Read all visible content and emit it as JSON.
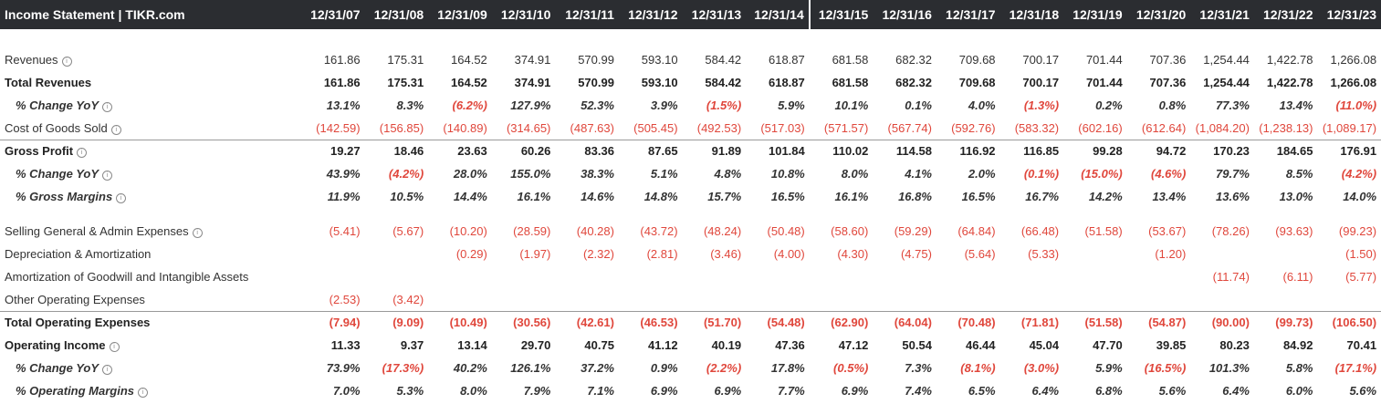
{
  "header": {
    "title": "Income Statement | TIKR.com",
    "years": [
      "12/31/07",
      "12/31/08",
      "12/31/09",
      "12/31/10",
      "12/31/11",
      "12/31/12",
      "12/31/13",
      "12/31/14",
      "12/31/15",
      "12/31/16",
      "12/31/17",
      "12/31/18",
      "12/31/19",
      "12/31/20",
      "12/31/21",
      "12/31/22",
      "12/31/23"
    ]
  },
  "rows": [
    {
      "label": "Revenues",
      "style": "normal",
      "info": true,
      "values": [
        "161.86",
        "175.31",
        "164.52",
        "374.91",
        "570.99",
        "593.10",
        "584.42",
        "618.87",
        "681.58",
        "682.32",
        "709.68",
        "700.17",
        "701.44",
        "707.36",
        "1,254.44",
        "1,422.78",
        "1,266.08"
      ]
    },
    {
      "label": "Total Revenues",
      "style": "bold",
      "info": false,
      "values": [
        "161.86",
        "175.31",
        "164.52",
        "374.91",
        "570.99",
        "593.10",
        "584.42",
        "618.87",
        "681.58",
        "682.32",
        "709.68",
        "700.17",
        "701.44",
        "707.36",
        "1,254.44",
        "1,422.78",
        "1,266.08"
      ]
    },
    {
      "label": "% Change YoY",
      "style": "pct",
      "info": true,
      "values": [
        "13.1%",
        "8.3%",
        "(6.2%)",
        "127.9%",
        "52.3%",
        "3.9%",
        "(1.5%)",
        "5.9%",
        "10.1%",
        "0.1%",
        "4.0%",
        "(1.3%)",
        "0.2%",
        "0.8%",
        "77.3%",
        "13.4%",
        "(11.0%)"
      ]
    },
    {
      "label": "Cost of Goods Sold",
      "style": "normal",
      "info": true,
      "values": [
        "(142.59)",
        "(156.85)",
        "(140.89)",
        "(314.65)",
        "(487.63)",
        "(505.45)",
        "(492.53)",
        "(517.03)",
        "(571.57)",
        "(567.74)",
        "(592.76)",
        "(583.32)",
        "(602.16)",
        "(612.64)",
        "(1,084.20)",
        "(1,238.13)",
        "(1,089.17)"
      ]
    },
    {
      "label": "Gross Profit",
      "style": "bold",
      "info": true,
      "topline": true,
      "values": [
        "19.27",
        "18.46",
        "23.63",
        "60.26",
        "83.36",
        "87.65",
        "91.89",
        "101.84",
        "110.02",
        "114.58",
        "116.92",
        "116.85",
        "99.28",
        "94.72",
        "170.23",
        "184.65",
        "176.91"
      ]
    },
    {
      "label": "% Change YoY",
      "style": "pct",
      "info": true,
      "values": [
        "43.9%",
        "(4.2%)",
        "28.0%",
        "155.0%",
        "38.3%",
        "5.1%",
        "4.8%",
        "10.8%",
        "8.0%",
        "4.1%",
        "2.0%",
        "(0.1%)",
        "(15.0%)",
        "(4.6%)",
        "79.7%",
        "8.5%",
        "(4.2%)"
      ]
    },
    {
      "label": "% Gross Margins",
      "style": "pct",
      "info": true,
      "values": [
        "11.9%",
        "10.5%",
        "14.4%",
        "16.1%",
        "14.6%",
        "14.8%",
        "15.7%",
        "16.5%",
        "16.1%",
        "16.8%",
        "16.5%",
        "16.7%",
        "14.2%",
        "13.4%",
        "13.6%",
        "13.0%",
        "14.0%"
      ]
    },
    {
      "gap": true
    },
    {
      "label": "Selling General & Admin Expenses",
      "style": "normal",
      "info": true,
      "values": [
        "(5.41)",
        "(5.67)",
        "(10.20)",
        "(28.59)",
        "(40.28)",
        "(43.72)",
        "(48.24)",
        "(50.48)",
        "(58.60)",
        "(59.29)",
        "(64.84)",
        "(66.48)",
        "(51.58)",
        "(53.67)",
        "(78.26)",
        "(93.63)",
        "(99.23)"
      ]
    },
    {
      "label": "Depreciation & Amortization",
      "style": "normal",
      "info": false,
      "values": [
        "",
        "",
        "(0.29)",
        "(1.97)",
        "(2.32)",
        "(2.81)",
        "(3.46)",
        "(4.00)",
        "(4.30)",
        "(4.75)",
        "(5.64)",
        "(5.33)",
        "",
        "(1.20)",
        "",
        "",
        "(1.50)"
      ]
    },
    {
      "label": "Amortization of Goodwill and Intangible Assets",
      "style": "normal",
      "info": false,
      "values": [
        "",
        "",
        "",
        "",
        "",
        "",
        "",
        "",
        "",
        "",
        "",
        "",
        "",
        "",
        "(11.74)",
        "(6.11)",
        "(5.77)"
      ]
    },
    {
      "label": "Other Operating Expenses",
      "style": "normal",
      "info": false,
      "values": [
        "(2.53)",
        "(3.42)",
        "",
        "",
        "",
        "",
        "",
        "",
        "",
        "",
        "",
        "",
        "",
        "",
        "",
        "",
        ""
      ]
    },
    {
      "label": "Total Operating Expenses",
      "style": "bold",
      "info": false,
      "topline": true,
      "values": [
        "(7.94)",
        "(9.09)",
        "(10.49)",
        "(30.56)",
        "(42.61)",
        "(46.53)",
        "(51.70)",
        "(54.48)",
        "(62.90)",
        "(64.04)",
        "(70.48)",
        "(71.81)",
        "(51.58)",
        "(54.87)",
        "(90.00)",
        "(99.73)",
        "(106.50)"
      ]
    },
    {
      "label": "Operating Income",
      "style": "bold",
      "info": true,
      "values": [
        "11.33",
        "9.37",
        "13.14",
        "29.70",
        "40.75",
        "41.12",
        "40.19",
        "47.36",
        "47.12",
        "50.54",
        "46.44",
        "45.04",
        "47.70",
        "39.85",
        "80.23",
        "84.92",
        "70.41"
      ]
    },
    {
      "label": "% Change YoY",
      "style": "pct",
      "info": true,
      "values": [
        "73.9%",
        "(17.3%)",
        "40.2%",
        "126.1%",
        "37.2%",
        "0.9%",
        "(2.2%)",
        "17.8%",
        "(0.5%)",
        "7.3%",
        "(8.1%)",
        "(3.0%)",
        "5.9%",
        "(16.5%)",
        "101.3%",
        "5.8%",
        "(17.1%)"
      ]
    },
    {
      "label": "% Operating Margins",
      "style": "pct",
      "info": true,
      "values": [
        "7.0%",
        "5.3%",
        "8.0%",
        "7.9%",
        "7.1%",
        "6.9%",
        "6.9%",
        "7.7%",
        "6.9%",
        "7.4%",
        "6.5%",
        "6.4%",
        "6.8%",
        "5.6%",
        "6.4%",
        "6.0%",
        "5.6%"
      ]
    }
  ],
  "colors": {
    "header_bg": "#2b2d31",
    "negative": "#e0473c",
    "text": "#333333"
  },
  "icons": {
    "info": "info-circle-icon"
  }
}
